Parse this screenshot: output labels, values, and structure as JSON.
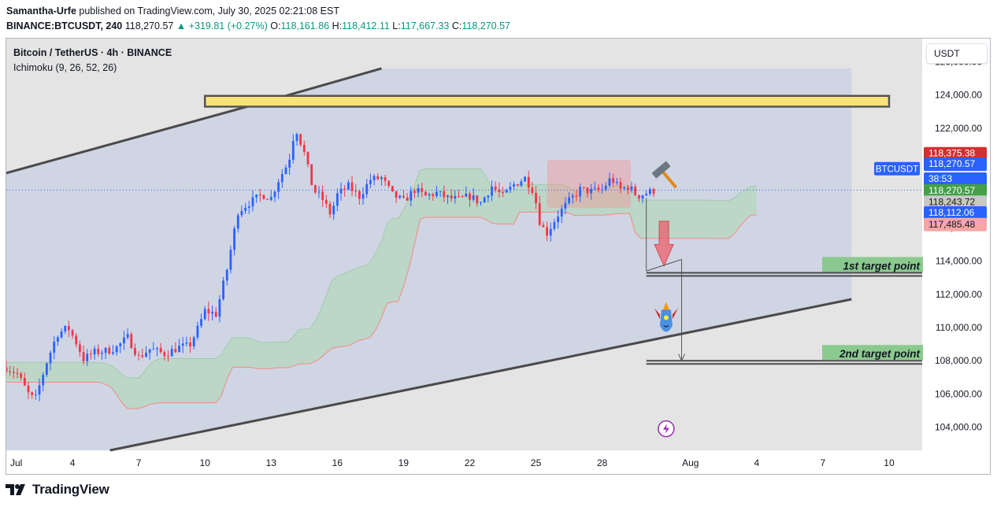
{
  "header": {
    "publisher": "Samantha-Urfe",
    "published_text": "published on TradingView.com, July 30, 2025 02:21:08 EST",
    "symbol_line": "BINANCE:BTCUSDT, 240",
    "last": "118,270.57",
    "change": "▲ +319.81 (+0.27%)",
    "o_label": "O:",
    "o_value": "118,161.86",
    "h_label": "H:",
    "h_value": "118,412.11",
    "l_label": "L:",
    "l_value": "117,667.33",
    "c_label": "C:",
    "c_value": "118,270.57"
  },
  "legend": {
    "title": "Bitcoin / TetherUS · 4h · BINANCE",
    "indicator": "Ichimoku (9, 26, 52, 26)"
  },
  "currency_button": "USDT",
  "footer": {
    "brand": "TradingView"
  },
  "colors": {
    "up": "#2962ff",
    "down": "#f23645",
    "cloud_bull": "#a5d6a7",
    "cloud_bear": "#ef9a9a",
    "zone": "#f7e37a"
  },
  "chart_data": {
    "type": "candlestick",
    "title": "Bitcoin / TetherUS · 4h · BINANCE",
    "ylim": [
      102600,
      127400
    ],
    "y_ticks": [
      "104,000.00",
      "106,000.00",
      "108,000.00",
      "110,000.00",
      "112,000.00",
      "114,000.00",
      "116,000.00",
      "118,000.00",
      "120,000.00",
      "122,000.00",
      "124,000.00",
      "126,000.00"
    ],
    "x_ticks": [
      {
        "label": "Jul",
        "day": 1
      },
      {
        "label": "4",
        "day": 4
      },
      {
        "label": "7",
        "day": 7
      },
      {
        "label": "10",
        "day": 10
      },
      {
        "label": "13",
        "day": 13
      },
      {
        "label": "16",
        "day": 16
      },
      {
        "label": "19",
        "day": 19
      },
      {
        "label": "22",
        "day": 22
      },
      {
        "label": "25",
        "day": 25
      },
      {
        "label": "28",
        "day": 28
      },
      {
        "label": "Aug",
        "day": 32
      },
      {
        "label": "4",
        "day": 35
      },
      {
        "label": "7",
        "day": 38
      },
      {
        "label": "10",
        "day": 41
      }
    ],
    "x_range_days": [
      1.0,
      42.5
    ],
    "price_key_points": [
      [
        1.0,
        107600
      ],
      [
        1.5,
        107200
      ],
      [
        2.0,
        106000
      ],
      [
        2.3,
        105600
      ],
      [
        2.8,
        107800
      ],
      [
        3.3,
        109600
      ],
      [
        3.8,
        110000
      ],
      [
        4.2,
        109000
      ],
      [
        4.5,
        108100
      ],
      [
        5.0,
        108500
      ],
      [
        5.6,
        108600
      ],
      [
        6.0,
        108800
      ],
      [
        6.5,
        109400
      ],
      [
        7.0,
        108200
      ],
      [
        7.5,
        108700
      ],
      [
        8.2,
        108400
      ],
      [
        8.8,
        108800
      ],
      [
        9.3,
        108900
      ],
      [
        9.7,
        110000
      ],
      [
        10.0,
        111000
      ],
      [
        10.5,
        110800
      ],
      [
        11.0,
        113500
      ],
      [
        11.5,
        117000
      ],
      [
        12.0,
        117500
      ],
      [
        12.6,
        118000
      ],
      [
        13.0,
        117800
      ],
      [
        13.3,
        118800
      ],
      [
        13.8,
        120000
      ],
      [
        14.1,
        122100
      ],
      [
        14.5,
        120500
      ],
      [
        14.9,
        118300
      ],
      [
        15.3,
        117800
      ],
      [
        15.7,
        116800
      ],
      [
        16.0,
        118000
      ],
      [
        16.5,
        118500
      ],
      [
        17.0,
        117900
      ],
      [
        17.5,
        118900
      ],
      [
        18.0,
        119000
      ],
      [
        18.5,
        118000
      ],
      [
        19.0,
        117600
      ],
      [
        19.5,
        118300
      ],
      [
        20.0,
        117900
      ],
      [
        20.5,
        118100
      ],
      [
        21.0,
        117800
      ],
      [
        21.5,
        117700
      ],
      [
        22.0,
        117900
      ],
      [
        22.5,
        117500
      ],
      [
        23.0,
        118500
      ],
      [
        23.5,
        117900
      ],
      [
        24.0,
        118600
      ],
      [
        24.5,
        119000
      ],
      [
        24.9,
        118200
      ],
      [
        25.2,
        116200
      ],
      [
        25.5,
        115700
      ],
      [
        26.0,
        116800
      ],
      [
        26.5,
        117600
      ],
      [
        27.0,
        118300
      ],
      [
        27.5,
        118200
      ],
      [
        28.0,
        118300
      ],
      [
        28.4,
        119000
      ],
      [
        28.8,
        118300
      ],
      [
        29.2,
        118500
      ],
      [
        29.6,
        117900
      ],
      [
        30.0,
        118100
      ],
      [
        30.4,
        118270
      ]
    ],
    "last_price": "118,270.57",
    "price_labels": [
      {
        "text": "118,375.38",
        "price": 120490,
        "bg": "#d32f2f",
        "color": "#ffffff"
      },
      {
        "text": "118,270.57",
        "price": 119850,
        "bg": "#2962ff",
        "color": "#ffffff"
      },
      {
        "text": "38:53",
        "price": 118960,
        "bg": "#2962ff",
        "color": "#ffffff"
      },
      {
        "text": "118,270.57",
        "price": 118250,
        "bg": "#43a047",
        "color": "#ffffff"
      },
      {
        "text": "118,243.72",
        "price": 117570,
        "bg": "#c8c8c8",
        "color": "#131722"
      },
      {
        "text": "118,112.06",
        "price": 116920,
        "bg": "#2962ff",
        "color": "#ffffff"
      },
      {
        "text": "117,485.48",
        "price": 116220,
        "bg": "#f8a5a5",
        "color": "#131722"
      }
    ],
    "symbol_tag": "BTCUSDT",
    "resistance_zone": {
      "from_day": 10.0,
      "to_day": 41.0,
      "low": 123300,
      "high": 123950
    },
    "channel_upper": [
      [
        1.0,
        119300
      ],
      [
        13.0,
        123700
      ],
      [
        18.0,
        125600
      ]
    ],
    "channel_lower": [
      [
        5.7,
        102600
      ],
      [
        39.3,
        111700
      ]
    ],
    "target_1": {
      "label": "1st target point",
      "price": 113200,
      "from_day": 30.0,
      "to_day": 41.0
    },
    "target_2": {
      "label": "2nd target point",
      "price": 107900,
      "from_day": 30.0,
      "to_day": 41.0
    },
    "annotations": [
      "hammer",
      "down-arrow",
      "rocket",
      "lightning"
    ]
  }
}
